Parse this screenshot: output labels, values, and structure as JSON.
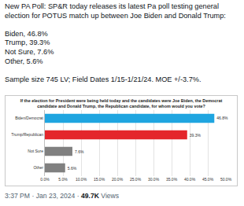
{
  "tweet": {
    "intro": "New PA Poll:  SP&R today releases its latest Pa poll testing general election for POTUS match up between Joe Biden and Donald Trump:",
    "results": [
      "Biden, 46.8%",
      "Trump, 39.3%",
      "Not Sure, 7.6%",
      "Other, 5.6%"
    ],
    "sample": "Sample size 745 LV; Field Dates 1/15-1/21/24. MOE +/-3.7%.",
    "timestamp": "3:37 PM · Jan 23, 2024 ·",
    "views": "49.7K",
    "views_label": "Views"
  },
  "chart_data": {
    "type": "bar",
    "orientation": "horizontal",
    "title": "If the election for President were being held today and the candidates were Joe Biden, the Democrat candidate and Donald Trump, the Republican candidate, for whom would you vote?",
    "categories": [
      "Biden/Democrat",
      "Trump/Republican",
      "Not Sure",
      "Other"
    ],
    "values": [
      46.8,
      39.3,
      7.6,
      5.6
    ],
    "value_labels": [
      "46.8%",
      "39.3%",
      "7.6%",
      "5.6%"
    ],
    "data_labels": true,
    "colors": [
      "#1fa5e0",
      "#e4262b",
      "#808080",
      "#808080"
    ],
    "xlim": [
      0,
      50
    ],
    "xticks": [
      {
        "value": 0,
        "label": "0.0%"
      },
      {
        "value": 5,
        "label": "5.0%"
      },
      {
        "value": 10,
        "label": "10.0%"
      },
      {
        "value": 15,
        "label": "15.0%"
      },
      {
        "value": 20,
        "label": "20.0%"
      },
      {
        "value": 25,
        "label": "25.0%"
      },
      {
        "value": 30,
        "label": "30.0%"
      },
      {
        "value": 35,
        "label": "35.0%"
      },
      {
        "value": 40,
        "label": "40.0%"
      },
      {
        "value": 45,
        "label": "45.0%"
      },
      {
        "value": 50,
        "label": "50.0%"
      }
    ],
    "grid": true
  }
}
